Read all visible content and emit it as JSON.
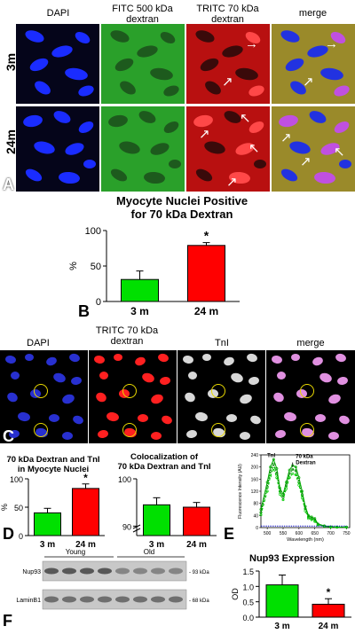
{
  "panelA": {
    "headers": [
      "DAPI",
      "FITC 500 kDa\ndextran",
      "TRITC 70 kDa\ndextran",
      "merge"
    ],
    "rows": [
      "3m",
      "24m"
    ],
    "label": "A"
  },
  "panelB": {
    "label": "B",
    "title": "Myocyte Nuclei Positive\nfor 70 kDa Dextran"
  },
  "panelC": {
    "label": "C",
    "headers": [
      "DAPI",
      "TRITC 70 kDa\ndextran",
      "TnI",
      "merge"
    ]
  },
  "panelD": {
    "label": "D",
    "title_left": "70 kDa Dextran and TnI\nin Myocyte Nuclei",
    "title_right": "Colocalization of\n70 kDa Dextran and TnI"
  },
  "panelE": {
    "label": "E",
    "ylabel": "Fluorescence Intensity (AU)",
    "xlabel": "Wavelength (nm)",
    "anno_tni": "TnI",
    "anno_dextran": "70 kDa\nDextran"
  },
  "panelF": {
    "label": "F",
    "groups": [
      "Young",
      "Old"
    ],
    "bands": [
      "Nup93",
      "LaminB1"
    ],
    "sizes": [
      "93 kDa",
      "68 kDa"
    ],
    "title": "Nup93 Expression"
  },
  "colors": {
    "green": "#00e000",
    "red": "#ff0000",
    "blue": "#1e28ff"
  },
  "chart_data": [
    {
      "id": "B",
      "type": "bar",
      "title": "Myocyte Nuclei Positive for 70 kDa Dextran",
      "categories": [
        "3 m",
        "24 m"
      ],
      "values": [
        31,
        79
      ],
      "errors": [
        12,
        4
      ],
      "ylabel": "%",
      "ylim": [
        0,
        100
      ],
      "yticks": [
        0,
        50,
        100
      ],
      "colors": [
        "#00e000",
        "#ff0000"
      ],
      "significance": [
        "",
        "*"
      ]
    },
    {
      "id": "D-left",
      "type": "bar",
      "title": "70 kDa Dextran and TnI in Myocyte Nuclei",
      "categories": [
        "3 m",
        "24 m"
      ],
      "values": [
        40,
        83
      ],
      "errors": [
        8,
        8
      ],
      "ylabel": "%",
      "ylim": [
        0,
        100
      ],
      "yticks": [
        0,
        50,
        100
      ],
      "colors": [
        "#00e000",
        "#ff0000"
      ],
      "significance": [
        "",
        "*"
      ]
    },
    {
      "id": "D-right",
      "type": "bar",
      "title": "Colocalization of 70 kDa Dextran and TnI",
      "categories": [
        "3 m",
        "24 m"
      ],
      "values": [
        94.5,
        94
      ],
      "errors": [
        1.5,
        1
      ],
      "ylim": [
        88,
        100
      ],
      "yticks": [
        90,
        100
      ],
      "colors": [
        "#00e000",
        "#ff0000"
      ],
      "significance": [
        "",
        ""
      ]
    },
    {
      "id": "E",
      "type": "line",
      "xlabel": "Wavelength (nm)",
      "ylabel": "Fluorescence Intensity (AU)",
      "xlim": [
        480,
        760
      ],
      "ylim": [
        0,
        240
      ],
      "xticks": [
        500,
        550,
        600,
        650,
        700,
        750
      ],
      "yticks": [
        0,
        40,
        80,
        120,
        160,
        200,
        240
      ],
      "x": [
        480,
        500,
        510,
        520,
        530,
        540,
        550,
        560,
        570,
        580,
        590,
        600,
        610,
        620,
        630,
        640,
        650,
        660,
        680,
        700,
        720,
        750
      ],
      "series": [
        {
          "values": [
            60,
            150,
            200,
            225,
            195,
            130,
            110,
            150,
            190,
            205,
            200,
            165,
            120,
            70,
            40,
            35,
            30,
            12,
            6,
            3,
            2,
            2
          ]
        },
        {
          "values": [
            50,
            135,
            185,
            210,
            180,
            120,
            100,
            140,
            178,
            192,
            188,
            150,
            108,
            62,
            34,
            30,
            25,
            10,
            5,
            2,
            2,
            2
          ]
        },
        {
          "values": [
            42,
            120,
            170,
            195,
            165,
            110,
            92,
            128,
            165,
            178,
            174,
            140,
            98,
            55,
            30,
            26,
            20,
            8,
            4,
            2,
            1,
            1
          ]
        },
        {
          "values": [
            5,
            5,
            5,
            5,
            5,
            5,
            5,
            5,
            5,
            5,
            5,
            5,
            5,
            5,
            5,
            5,
            5,
            5,
            5,
            5,
            5,
            5
          ]
        }
      ]
    },
    {
      "id": "F",
      "type": "bar",
      "title": "Nup93 Expression",
      "categories": [
        "3 m",
        "24 m"
      ],
      "values": [
        1.05,
        0.42
      ],
      "errors": [
        0.32,
        0.18
      ],
      "ylabel": "OD",
      "ylim": [
        0,
        1.5
      ],
      "yticks": [
        0.0,
        0.5,
        1.0,
        1.5
      ],
      "colors": [
        "#00e000",
        "#ff0000"
      ],
      "significance": [
        "",
        "*"
      ]
    }
  ]
}
